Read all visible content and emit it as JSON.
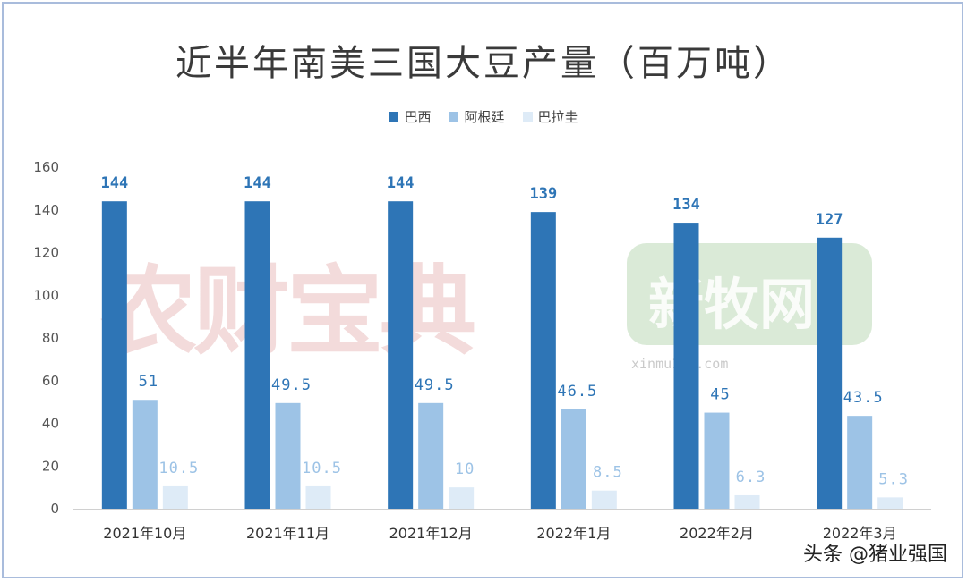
{
  "chart_data": {
    "type": "bar",
    "title": "近半年南美三国大豆产量（百万吨）",
    "categories": [
      "2021年10月",
      "2021年11月",
      "2021年12月",
      "2022年1月",
      "2022年2月",
      "2022年3月"
    ],
    "series": [
      {
        "name": "巴西",
        "values": [
          144,
          144,
          144,
          139,
          134,
          127
        ],
        "labels": [
          "144",
          "144",
          "144",
          "139",
          "134",
          "127"
        ],
        "color": "#2e75b6"
      },
      {
        "name": "阿根廷",
        "values": [
          51,
          49.5,
          49.5,
          46.5,
          45,
          43.5
        ],
        "labels": [
          "51",
          "49.5",
          "49.5",
          "46.5",
          "45",
          "43.5"
        ],
        "color": "#9dc3e6"
      },
      {
        "name": "巴拉圭",
        "values": [
          10.5,
          10.5,
          10,
          8.5,
          6.3,
          5.3
        ],
        "labels": [
          "10.5",
          "10.5",
          "10",
          "8.5",
          "6.3",
          "5.3"
        ],
        "color": "#deebf7"
      }
    ],
    "yticks": [
      "0",
      "20",
      "40",
      "60",
      "80",
      "100",
      "120",
      "140",
      "160"
    ],
    "ylim": [
      0,
      160
    ],
    "grid": false,
    "legend": "top-center"
  },
  "watermarks": {
    "left": "农财宝典",
    "right": "新牧网",
    "right_url": "xinmu123.com"
  },
  "source": "头条 @猪业强国",
  "label_colors": {
    "巴西": "#2e75b6",
    "阿根廷": "#2e75b6",
    "巴拉圭": "#9dc3e6"
  }
}
